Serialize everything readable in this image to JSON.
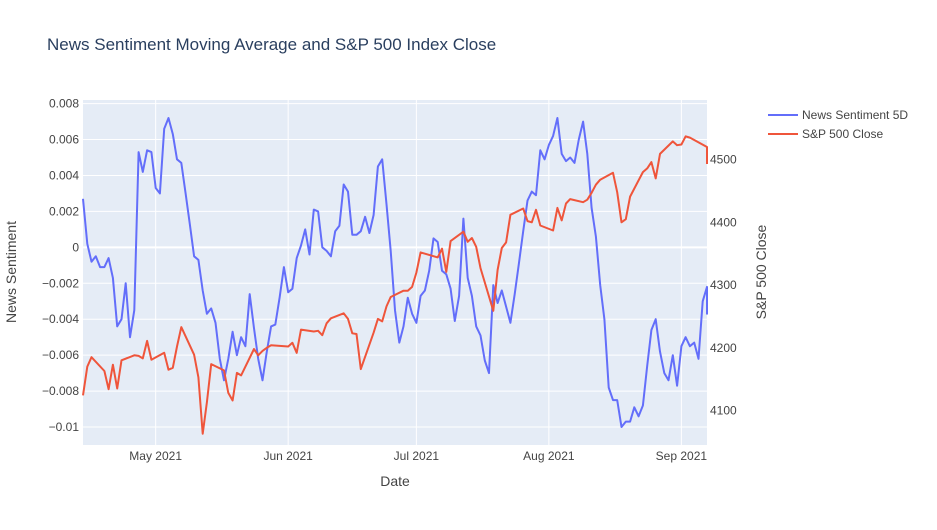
{
  "chart_data": {
    "type": "line",
    "title": "News Sentiment Moving Average and S&P 500 Index Close",
    "xlabel": "Date",
    "ylabel_left": "News Sentiment",
    "ylabel_right": "S&P 500 Close",
    "x_ticks": [
      {
        "date": "2021-05-01",
        "label": "May 2021"
      },
      {
        "date": "2021-06-01",
        "label": "Jun 2021"
      },
      {
        "date": "2021-07-01",
        "label": "Jul 2021"
      },
      {
        "date": "2021-08-01",
        "label": "Aug 2021"
      },
      {
        "date": "2021-09-01",
        "label": "Sep 2021"
      }
    ],
    "x_range": [
      "2021-04-14",
      "2021-09-07"
    ],
    "y_left_range": [
      -0.011,
      0.0082
    ],
    "y_left_ticks": [
      0.008,
      0.006,
      0.004,
      0.002,
      0,
      -0.002,
      -0.004,
      -0.006,
      -0.008,
      -0.01
    ],
    "y_left_tick_labels": [
      "0.008",
      "0.006",
      "0.004",
      "0.002",
      "0",
      "−0.002",
      "−0.004",
      "−0.006",
      "−0.008",
      "−0.01"
    ],
    "y_right_range": [
      4045,
      4595
    ],
    "y_right_ticks": [
      4500,
      4400,
      4300,
      4200,
      4100
    ],
    "y_right_tick_labels": [
      "4500",
      "4400",
      "4300",
      "4200",
      "4100"
    ],
    "grid": true,
    "legend_position": "top-right",
    "colors": {
      "sentiment": "#636efa",
      "sp500": "#ef553b",
      "plot_bg": "#e5ecf6",
      "grid": "#ffffff",
      "text": "#444444",
      "title": "#2a3f5f"
    },
    "series": [
      {
        "name": "News Sentiment 5D",
        "axis": "left",
        "color": "#636efa",
        "points": [
          [
            "2021-04-14",
            0.0027
          ],
          [
            "2021-04-15",
            0.0002
          ],
          [
            "2021-04-16",
            -0.0008
          ],
          [
            "2021-04-17",
            -0.0005
          ],
          [
            "2021-04-18",
            -0.0011
          ],
          [
            "2021-04-19",
            -0.0011
          ],
          [
            "2021-04-20",
            -0.0006
          ],
          [
            "2021-04-21",
            -0.0017
          ],
          [
            "2021-04-22",
            -0.0044
          ],
          [
            "2021-04-23",
            -0.004
          ],
          [
            "2021-04-24",
            -0.002
          ],
          [
            "2021-04-25",
            -0.005
          ],
          [
            "2021-04-26",
            -0.0035
          ],
          [
            "2021-04-27",
            0.0053
          ],
          [
            "2021-04-28",
            0.0042
          ],
          [
            "2021-04-29",
            0.0054
          ],
          [
            "2021-04-30",
            0.0053
          ],
          [
            "2021-05-01",
            0.0033
          ],
          [
            "2021-05-02",
            0.003
          ],
          [
            "2021-05-03",
            0.0066
          ],
          [
            "2021-05-04",
            0.0072
          ],
          [
            "2021-05-05",
            0.0063
          ],
          [
            "2021-05-06",
            0.0049
          ],
          [
            "2021-05-07",
            0.0047
          ],
          [
            "2021-05-08",
            0.003
          ],
          [
            "2021-05-09",
            0.0013
          ],
          [
            "2021-05-10",
            -0.0005
          ],
          [
            "2021-05-11",
            -0.0007
          ],
          [
            "2021-05-12",
            -0.0024
          ],
          [
            "2021-05-13",
            -0.0037
          ],
          [
            "2021-05-14",
            -0.0034
          ],
          [
            "2021-05-15",
            -0.0042
          ],
          [
            "2021-05-16",
            -0.0062
          ],
          [
            "2021-05-17",
            -0.0074
          ],
          [
            "2021-05-18",
            -0.0062
          ],
          [
            "2021-05-19",
            -0.0047
          ],
          [
            "2021-05-20",
            -0.006
          ],
          [
            "2021-05-21",
            -0.005
          ],
          [
            "2021-05-22",
            -0.0055
          ],
          [
            "2021-05-23",
            -0.0026
          ],
          [
            "2021-05-24",
            -0.0045
          ],
          [
            "2021-05-25",
            -0.0062
          ],
          [
            "2021-05-26",
            -0.0074
          ],
          [
            "2021-05-27",
            -0.0058
          ],
          [
            "2021-05-28",
            -0.0044
          ],
          [
            "2021-05-29",
            -0.0043
          ],
          [
            "2021-05-30",
            -0.0028
          ],
          [
            "2021-05-31",
            -0.0011
          ],
          [
            "2021-06-01",
            -0.0025
          ],
          [
            "2021-06-02",
            -0.0023
          ],
          [
            "2021-06-03",
            -0.0006
          ],
          [
            "2021-06-04",
            0.0001
          ],
          [
            "2021-06-05",
            0.001
          ],
          [
            "2021-06-06",
            -0.0004
          ],
          [
            "2021-06-07",
            0.0021
          ],
          [
            "2021-06-08",
            0.002
          ],
          [
            "2021-06-09",
            0.0
          ],
          [
            "2021-06-10",
            -0.0002
          ],
          [
            "2021-06-11",
            -0.0005
          ],
          [
            "2021-06-12",
            0.0009
          ],
          [
            "2021-06-13",
            0.0012
          ],
          [
            "2021-06-14",
            0.0035
          ],
          [
            "2021-06-15",
            0.0031
          ],
          [
            "2021-06-16",
            0.0007
          ],
          [
            "2021-06-17",
            0.0007
          ],
          [
            "2021-06-18",
            0.0009
          ],
          [
            "2021-06-19",
            0.0017
          ],
          [
            "2021-06-20",
            0.0008
          ],
          [
            "2021-06-21",
            0.0018
          ],
          [
            "2021-06-22",
            0.0045
          ],
          [
            "2021-06-23",
            0.0049
          ],
          [
            "2021-06-24",
            0.0024
          ],
          [
            "2021-06-25",
            -0.0002
          ],
          [
            "2021-06-26",
            -0.0035
          ],
          [
            "2021-06-27",
            -0.0053
          ],
          [
            "2021-06-28",
            -0.0044
          ],
          [
            "2021-06-29",
            -0.0028
          ],
          [
            "2021-06-30",
            -0.0037
          ],
          [
            "2021-07-01",
            -0.0042
          ],
          [
            "2021-07-02",
            -0.0027
          ],
          [
            "2021-07-03",
            -0.0024
          ],
          [
            "2021-07-04",
            -0.0013
          ],
          [
            "2021-07-05",
            0.0005
          ],
          [
            "2021-07-06",
            0.0003
          ],
          [
            "2021-07-07",
            -0.0013
          ],
          [
            "2021-07-08",
            -0.0015
          ],
          [
            "2021-07-09",
            -0.0023
          ],
          [
            "2021-07-10",
            -0.0041
          ],
          [
            "2021-07-11",
            -0.0027
          ],
          [
            "2021-07-12",
            0.0016
          ],
          [
            "2021-07-13",
            -0.0017
          ],
          [
            "2021-07-14",
            -0.0027
          ],
          [
            "2021-07-15",
            -0.0044
          ],
          [
            "2021-07-16",
            -0.0049
          ],
          [
            "2021-07-17",
            -0.0063
          ],
          [
            "2021-07-18",
            -0.007
          ],
          [
            "2021-07-19",
            -0.0021
          ],
          [
            "2021-07-20",
            -0.0031
          ],
          [
            "2021-07-21",
            -0.0024
          ],
          [
            "2021-07-22",
            -0.0033
          ],
          [
            "2021-07-23",
            -0.0042
          ],
          [
            "2021-07-24",
            -0.0026
          ],
          [
            "2021-07-25",
            -0.0009
          ],
          [
            "2021-07-26",
            0.0009
          ],
          [
            "2021-07-27",
            0.0026
          ],
          [
            "2021-07-28",
            0.0031
          ],
          [
            "2021-07-29",
            0.0029
          ],
          [
            "2021-07-30",
            0.0054
          ],
          [
            "2021-07-31",
            0.0049
          ],
          [
            "2021-08-01",
            0.0057
          ],
          [
            "2021-08-02",
            0.0062
          ],
          [
            "2021-08-03",
            0.0072
          ],
          [
            "2021-08-04",
            0.0052
          ],
          [
            "2021-08-05",
            0.0048
          ],
          [
            "2021-08-06",
            0.005
          ],
          [
            "2021-08-07",
            0.0047
          ],
          [
            "2021-08-08",
            0.006
          ],
          [
            "2021-08-09",
            0.007
          ],
          [
            "2021-08-10",
            0.0052
          ],
          [
            "2021-08-11",
            0.0022
          ],
          [
            "2021-08-12",
            0.0006
          ],
          [
            "2021-08-13",
            -0.0021
          ],
          [
            "2021-08-14",
            -0.004
          ],
          [
            "2021-08-15",
            -0.0078
          ],
          [
            "2021-08-16",
            -0.0085
          ],
          [
            "2021-08-17",
            -0.0085
          ],
          [
            "2021-08-18",
            -0.01
          ],
          [
            "2021-08-19",
            -0.0097
          ],
          [
            "2021-08-20",
            -0.0097
          ],
          [
            "2021-08-21",
            -0.0089
          ],
          [
            "2021-08-22",
            -0.0094
          ],
          [
            "2021-08-23",
            -0.0088
          ],
          [
            "2021-08-24",
            -0.0066
          ],
          [
            "2021-08-25",
            -0.0046
          ],
          [
            "2021-08-26",
            -0.004
          ],
          [
            "2021-08-27",
            -0.0058
          ],
          [
            "2021-08-28",
            -0.007
          ],
          [
            "2021-08-29",
            -0.0074
          ],
          [
            "2021-08-30",
            -0.006
          ],
          [
            "2021-08-31",
            -0.0077
          ],
          [
            "2021-09-01",
            -0.0055
          ],
          [
            "2021-09-02",
            -0.005
          ],
          [
            "2021-09-03",
            -0.0055
          ],
          [
            "2021-09-04",
            -0.0053
          ],
          [
            "2021-09-05",
            -0.0062
          ],
          [
            "2021-09-06",
            -0.003
          ],
          [
            "2021-09-07",
            -0.0022
          ],
          [
            "2021-09-08",
            -0.0037
          ],
          [
            "2021-09-09",
            -0.0034
          ]
        ]
      },
      {
        "name": "S&P 500 Close",
        "axis": "right",
        "color": "#ef553b",
        "points": [
          [
            "2021-04-14",
            4124
          ],
          [
            "2021-04-15",
            4170
          ],
          [
            "2021-04-16",
            4185
          ],
          [
            "2021-04-19",
            4163
          ],
          [
            "2021-04-20",
            4134
          ],
          [
            "2021-04-21",
            4173
          ],
          [
            "2021-04-22",
            4135
          ],
          [
            "2021-04-23",
            4180
          ],
          [
            "2021-04-26",
            4188
          ],
          [
            "2021-04-27",
            4187
          ],
          [
            "2021-04-28",
            4183
          ],
          [
            "2021-04-29",
            4211
          ],
          [
            "2021-04-30",
            4181
          ],
          [
            "2021-05-03",
            4192
          ],
          [
            "2021-05-04",
            4165
          ],
          [
            "2021-05-05",
            4168
          ],
          [
            "2021-05-06",
            4202
          ],
          [
            "2021-05-07",
            4233
          ],
          [
            "2021-05-10",
            4189
          ],
          [
            "2021-05-11",
            4153
          ],
          [
            "2021-05-12",
            4063
          ],
          [
            "2021-05-13",
            4113
          ],
          [
            "2021-05-14",
            4174
          ],
          [
            "2021-05-17",
            4164
          ],
          [
            "2021-05-18",
            4128
          ],
          [
            "2021-05-19",
            4116
          ],
          [
            "2021-05-20",
            4160
          ],
          [
            "2021-05-21",
            4156
          ],
          [
            "2021-05-24",
            4198
          ],
          [
            "2021-05-25",
            4188
          ],
          [
            "2021-05-26",
            4195
          ],
          [
            "2021-05-27",
            4200
          ],
          [
            "2021-05-28",
            4204
          ],
          [
            "2021-06-01",
            4202
          ],
          [
            "2021-06-02",
            4208
          ],
          [
            "2021-06-03",
            4192
          ],
          [
            "2021-06-04",
            4229
          ],
          [
            "2021-06-07",
            4226
          ],
          [
            "2021-06-08",
            4227
          ],
          [
            "2021-06-09",
            4220
          ],
          [
            "2021-06-10",
            4239
          ],
          [
            "2021-06-11",
            4247
          ],
          [
            "2021-06-14",
            4255
          ],
          [
            "2021-06-15",
            4246
          ],
          [
            "2021-06-16",
            4223
          ],
          [
            "2021-06-17",
            4222
          ],
          [
            "2021-06-18",
            4166
          ],
          [
            "2021-06-21",
            4224
          ],
          [
            "2021-06-22",
            4246
          ],
          [
            "2021-06-23",
            4242
          ],
          [
            "2021-06-24",
            4266
          ],
          [
            "2021-06-25",
            4281
          ],
          [
            "2021-06-28",
            4291
          ],
          [
            "2021-06-29",
            4291
          ],
          [
            "2021-06-30",
            4297
          ],
          [
            "2021-07-01",
            4320
          ],
          [
            "2021-07-02",
            4352
          ],
          [
            "2021-07-06",
            4344
          ],
          [
            "2021-07-07",
            4358
          ],
          [
            "2021-07-08",
            4321
          ],
          [
            "2021-07-09",
            4370
          ],
          [
            "2021-07-12",
            4385
          ],
          [
            "2021-07-13",
            4369
          ],
          [
            "2021-07-14",
            4375
          ],
          [
            "2021-07-15",
            4361
          ],
          [
            "2021-07-16",
            4327
          ],
          [
            "2021-07-19",
            4259
          ],
          [
            "2021-07-20",
            4324
          ],
          [
            "2021-07-21",
            4359
          ],
          [
            "2021-07-22",
            4368
          ],
          [
            "2021-07-23",
            4412
          ],
          [
            "2021-07-26",
            4422
          ],
          [
            "2021-07-27",
            4402
          ],
          [
            "2021-07-28",
            4400
          ],
          [
            "2021-07-29",
            4420
          ],
          [
            "2021-07-30",
            4395
          ],
          [
            "2021-08-02",
            4387
          ],
          [
            "2021-08-03",
            4423
          ],
          [
            "2021-08-04",
            4403
          ],
          [
            "2021-08-05",
            4430
          ],
          [
            "2021-08-06",
            4437
          ],
          [
            "2021-08-09",
            4432
          ],
          [
            "2021-08-10",
            4436
          ],
          [
            "2021-08-11",
            4447
          ],
          [
            "2021-08-12",
            4460
          ],
          [
            "2021-08-13",
            4468
          ],
          [
            "2021-08-16",
            4479
          ],
          [
            "2021-08-17",
            4448
          ],
          [
            "2021-08-18",
            4400
          ],
          [
            "2021-08-19",
            4405
          ],
          [
            "2021-08-20",
            4441
          ],
          [
            "2021-08-23",
            4480
          ],
          [
            "2021-08-24",
            4486
          ],
          [
            "2021-08-25",
            4496
          ],
          [
            "2021-08-26",
            4470
          ],
          [
            "2021-08-27",
            4509
          ],
          [
            "2021-08-30",
            4529
          ],
          [
            "2021-08-31",
            4523
          ],
          [
            "2021-09-01",
            4524
          ],
          [
            "2021-09-02",
            4537
          ],
          [
            "2021-09-03",
            4535
          ],
          [
            "2021-09-07",
            4520
          ],
          [
            "2021-09-08",
            4514
          ],
          [
            "2021-09-09",
            4493
          ]
        ]
      }
    ]
  }
}
